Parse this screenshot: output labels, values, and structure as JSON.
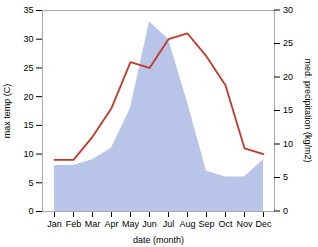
{
  "chart_data": {
    "type": "line",
    "categories": [
      "Jan",
      "Feb",
      "Mar",
      "Apr",
      "May",
      "Jun",
      "Jul",
      "Aug",
      "Sep",
      "Oct",
      "Nov",
      "Dec"
    ],
    "series": [
      {
        "type": "area",
        "color": "#b8c4e8",
        "values": [
          8,
          8,
          9,
          11,
          18,
          33,
          30,
          19,
          7,
          6,
          6,
          9
        ]
      },
      {
        "type": "line",
        "color": "#c0392b",
        "values": [
          9,
          9,
          13,
          18,
          26,
          25,
          30,
          31,
          27,
          22,
          11,
          10
        ]
      }
    ],
    "xlabel": "date (month)",
    "ylabel": "max temp (C)",
    "ylim": [
      0,
      35
    ],
    "yticks": [
      0,
      5,
      10,
      15,
      20,
      25,
      30,
      35
    ],
    "y2label": "med. precipitation (kg/m2)",
    "y2lim": [
      0,
      30
    ],
    "y2ticks": [
      0,
      5,
      10,
      15,
      20,
      25,
      30
    ],
    "grid": false
  }
}
